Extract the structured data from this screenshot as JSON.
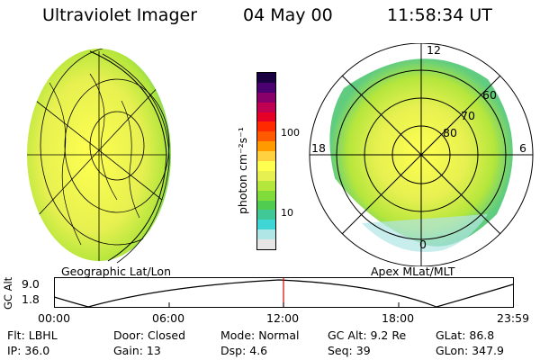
{
  "header": {
    "instrument": "Ultraviolet Imager",
    "date": "04 May 00",
    "time": "11:58:34 UT"
  },
  "geo_panel": {
    "caption": "Geographic Lat/Lon"
  },
  "colorbar": {
    "unit_label": "photon cm⁻²s⁻¹",
    "ticks": [
      "100",
      "10"
    ],
    "colors": [
      "#e6e6e6",
      "#b0e6e6",
      "#40d6d6",
      "#40c896",
      "#50cc50",
      "#80dc3a",
      "#b4e63c",
      "#e6f050",
      "#ffff50",
      "#ffd040",
      "#ff9a00",
      "#ff5a00",
      "#ff2a00",
      "#e60028",
      "#c00050",
      "#8a006a",
      "#4a0070",
      "#1a0040"
    ]
  },
  "polar_panel": {
    "caption": "Apex MLat/MLT",
    "mlt_labels": {
      "top": "12",
      "left": "18",
      "right": "6",
      "bottom": "0"
    },
    "lat_labels": [
      "60",
      "70",
      "80"
    ]
  },
  "alt_plot": {
    "ylabel": "GC Alt",
    "yticks": [
      "9.0",
      "1.8"
    ],
    "xticks": [
      "00:00",
      "06:00",
      "12:00",
      "18:00",
      "23:59"
    ]
  },
  "info_rows": [
    [
      {
        "label": "Flt: LBHL"
      },
      {
        "label": "Door: Closed"
      },
      {
        "label": "Mode: Normal"
      },
      {
        "label": "GC Alt: 9.2 Re"
      },
      {
        "label": "GLat:  86.8"
      }
    ],
    [
      {
        "label": "IP: 36.0"
      },
      {
        "label": "Gain: 13"
      },
      {
        "label": "Dsp:     4.6"
      },
      {
        "label": "Seq: 39"
      },
      {
        "label": "GLon: 347.9"
      }
    ]
  ]
}
